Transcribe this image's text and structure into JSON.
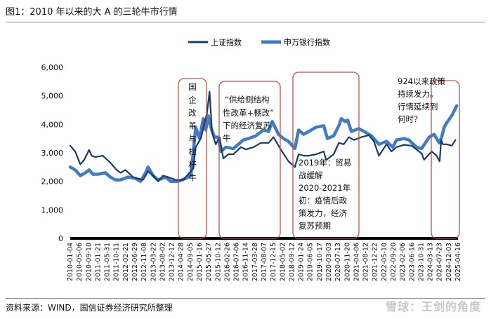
{
  "title": "图1：2010 年以来的大 A 的三轮牛市行情",
  "source": "资料来源：WIND，国信证券经济研究所整理",
  "watermark": "雪球：王剑的角度",
  "colors": {
    "sh": "#1a3a67",
    "sw": "#3f7cc4",
    "box": "#c0504d",
    "axis": "#000000"
  },
  "chart_data": {
    "type": "line",
    "title": "",
    "xlabel": "",
    "ylabel": "",
    "ylim": [
      0,
      6000
    ],
    "yticks": [
      "0",
      "1,000",
      "2,000",
      "3,000",
      "4,000",
      "5,000",
      "6,000"
    ],
    "legend_position": "top-right",
    "x_tick_labels": [
      "2010-01-04",
      "2010-05-06",
      "2010-09-10",
      "2011-01-21",
      "2011-05-31",
      "2011-10-11",
      "2012-02-21",
      "2012-06-29",
      "2012-11-08",
      "2013-03-22",
      "2013-08-02",
      "2013-12-12",
      "2014-04-28",
      "2014-09-05",
      "2015-01-16",
      "2015-05-27",
      "2015-10-12",
      "2016-02-26",
      "2016-07-06",
      "2016-11-14",
      "2017-03-28",
      "2017-08-07",
      "2017-12-15",
      "2018-05-02",
      "2018-09-12",
      "2019-01-24",
      "2019-06-05",
      "2019-10-17",
      "2020-03-03",
      "2020-07-13",
      "2020-11-20",
      "2021-04-06",
      "2021-08-12",
      "2021-12-22",
      "2022-05-10",
      "2022-09-20",
      "2023-02-06",
      "2023-06-16",
      "2023-10-31",
      "2024-03-13",
      "2024-07-23",
      "2024-12-03",
      "2025-04-16"
    ],
    "x_tick_visible": [
      "2010-01-04",
      "2010-05-06",
      "2010-09-10",
      "2011-01-21",
      "2011-05-31",
      "2011-10-11",
      "2012-02-21",
      "2012-06-29",
      "2012-11-08",
      "2013-03-22",
      "2013-08-02",
      "2013-12-12",
      "2014-04-28",
      "2014-09-05",
      "2015-01-16",
      "2015-05-27",
      "2015-10-12",
      "2016-02-26",
      "2016-07-06",
      "2016-11-14",
      "2017-03-28",
      "2017-08-07",
      "2017-12-15",
      "2018-05-02",
      "2018-09-12",
      "2019-01-24",
      "2019-06-05",
      "2019-10-17",
      "2020-03-03",
      "2020-07-13",
      "2020-11-20",
      "2021-04-06",
      "2021-08-12",
      "2021-12-22",
      "2022-05-10",
      "2022-09-20",
      "2023-02-06",
      "2023-06-16",
      "2023-10-31",
      "2024-03-13",
      "2024-07-23",
      "2024-12-03",
      "2025-04-16"
    ],
    "x_tick_printed": [
      "2010-01-04",
      "2010-05-06",
      "2010-09-10",
      "2011-01-21",
      "2011-05-31",
      "2011-10-11",
      "2012-02-21",
      "2012-06-29",
      "2012-11-08",
      "2013-03-22",
      "2013-08-02",
      "2013-12-12",
      "2014-04-28",
      "2014-09-05",
      "2015-01-16",
      "2015-05-27",
      "2015-10-12",
      "2016-02-26",
      "2016-07-06",
      "2016-11-14",
      "2017-03-28",
      "2017-08-07",
      "2017-12-15",
      "2018-05-02",
      "2018-09-12",
      "2019-01-24",
      "2019-06-05",
      "2019-10-17",
      "2020-03-03",
      "2020-07-13",
      "2020-11-20",
      "2021-04-06",
      "2021-08-12",
      "2021-12-22",
      "2022-05-10",
      "2022-09-20",
      "2023-02-06",
      "2023-06-16",
      "2023-10-31",
      "2024-03-13",
      "2024-07-23",
      "2024-12-03",
      "2025-04-16"
    ],
    "x_ticks": [
      "2010-01-04",
      "2010-05-06",
      "2010-09-10",
      "2011-01-21",
      "2011-05-31",
      "2011-10-11",
      "2012-02-21",
      "2012-06-29",
      "2012-11-08",
      "2013-03-22",
      "2013-08-02",
      "2013-12-12",
      "2014-04-28",
      "2014-09-05",
      "2015-01-16",
      "2015-05-27",
      "2015-10-12",
      "2016-02-26",
      "2016-07-06",
      "2016-11-14",
      "2017-03-28",
      "2017-08-07",
      "2017-12-15",
      "2018-05-02",
      "2018-09-12",
      "2019-01-24",
      "2019-06-05",
      "2019-10-17",
      "2020-03-03",
      "2020-07-13",
      "2020-11-20",
      "2021-04-06",
      "2021-08-12",
      "2021-12-22",
      "2022-05-10",
      "2022-09-20",
      "2023-02-06",
      "2023-06-16",
      "2023-10-31",
      "2024-03-13",
      "2024-07-23",
      "2024-12-03",
      "2025-04-16"
    ],
    "series": [
      {
        "name": "上证指数",
        "x": [
          2010.0,
          2010.2,
          2010.4,
          2010.55,
          2010.75,
          2010.85,
          2011.0,
          2011.3,
          2011.6,
          2011.85,
          2012.0,
          2012.2,
          2012.5,
          2012.9,
          2013.1,
          2013.3,
          2013.5,
          2013.7,
          2013.9,
          2014.2,
          2014.5,
          2014.7,
          2014.9,
          2015.0,
          2015.2,
          2015.45,
          2015.55,
          2015.65,
          2015.8,
          2015.95,
          2016.1,
          2016.3,
          2016.5,
          2016.8,
          2017.0,
          2017.3,
          2017.6,
          2017.9,
          2018.1,
          2018.4,
          2018.7,
          2018.95,
          2019.1,
          2019.3,
          2019.5,
          2019.8,
          2020.1,
          2020.2,
          2020.5,
          2020.7,
          2020.9,
          2021.1,
          2021.3,
          2021.6,
          2021.9,
          2022.1,
          2022.3,
          2022.6,
          2022.8,
          2023.0,
          2023.3,
          2023.6,
          2023.9,
          2024.0,
          2024.1,
          2024.4,
          2024.6,
          2024.72,
          2024.78,
          2024.85,
          2025.0,
          2025.2,
          2025.35
        ],
        "values": [
          3250,
          3050,
          2600,
          2750,
          3100,
          2900,
          2850,
          2900,
          2650,
          2400,
          2300,
          2400,
          2150,
          2050,
          2350,
          2200,
          2000,
          2200,
          2150,
          2050,
          2050,
          2250,
          2450,
          3200,
          3500,
          4400,
          5150,
          3700,
          3300,
          3550,
          2800,
          2950,
          2950,
          3200,
          3120,
          3200,
          3350,
          3350,
          3550,
          3100,
          2700,
          2500,
          2950,
          2900,
          2900,
          2950,
          3050,
          2750,
          2950,
          3350,
          3300,
          3550,
          3450,
          3550,
          3620,
          3400,
          2900,
          3300,
          3050,
          3200,
          3280,
          3250,
          3050,
          2980,
          2760,
          3050,
          2900,
          2700,
          3450,
          3300,
          3300,
          3250,
          3450
        ]
      },
      {
        "name": "申万银行指数",
        "x": [
          2010.0,
          2010.2,
          2010.4,
          2010.6,
          2010.75,
          2010.9,
          2011.1,
          2011.4,
          2011.6,
          2011.8,
          2012.0,
          2012.3,
          2012.6,
          2012.8,
          2013.0,
          2013.1,
          2013.3,
          2013.5,
          2013.8,
          2014.0,
          2014.3,
          2014.6,
          2014.8,
          2014.9,
          2015.0,
          2015.15,
          2015.3,
          2015.4,
          2015.5,
          2015.6,
          2015.75,
          2015.9,
          2016.0,
          2016.2,
          2016.5,
          2016.9,
          2017.1,
          2017.4,
          2017.7,
          2017.9,
          2018.05,
          2018.3,
          2018.5,
          2018.7,
          2018.95,
          2019.1,
          2019.3,
          2019.5,
          2019.8,
          2020.1,
          2020.25,
          2020.5,
          2020.7,
          2020.8,
          2020.95,
          2021.05,
          2021.2,
          2021.5,
          2021.8,
          2022.0,
          2022.3,
          2022.6,
          2022.85,
          2023.0,
          2023.3,
          2023.5,
          2023.8,
          2024.0,
          2024.3,
          2024.5,
          2024.7,
          2024.8,
          2024.9,
          2025.0,
          2025.2,
          2025.4
        ],
        "values": [
          2500,
          2400,
          2200,
          2300,
          2400,
          2250,
          2250,
          2300,
          2150,
          2050,
          2050,
          2150,
          2100,
          2000,
          2300,
          2500,
          2200,
          2050,
          2150,
          2000,
          2000,
          2100,
          2200,
          3000,
          3900,
          3500,
          4200,
          3800,
          4300,
          3900,
          3550,
          3550,
          3050,
          3200,
          3150,
          3450,
          3500,
          3600,
          3800,
          3750,
          4100,
          3650,
          3500,
          3400,
          3150,
          3800,
          3650,
          3750,
          3900,
          3950,
          3500,
          3600,
          3950,
          4200,
          4100,
          4150,
          3750,
          3850,
          3700,
          3600,
          3300,
          3400,
          3200,
          3450,
          3500,
          3450,
          3200,
          3150,
          3550,
          3650,
          3350,
          3550,
          3900,
          4050,
          4300,
          4650
        ]
      }
    ]
  },
  "legend": {
    "sh": "上证指数",
    "sw": "申万银行指数"
  },
  "annotations": {
    "bull1": "国企改革与杠杆牛",
    "bull2_line1": "“供给侧结构",
    "bull2_line2": "性改革+棚改”",
    "bull2_line3": "下的经济复苏",
    "bull2_line4": "牛",
    "bull3_line1": "2019年：贸易",
    "bull3_line2": "战缓解",
    "bull3_line3": "2020-2021年",
    "bull3_line4": "初：疫情后政",
    "bull3_line5": "策发力，经济",
    "bull3_line6": "复苏预期",
    "bull4_line1": "924以来政策",
    "bull4_line2": "持续发力。",
    "bull4_line3": "行情延续到",
    "bull4_line4": "何时？"
  }
}
